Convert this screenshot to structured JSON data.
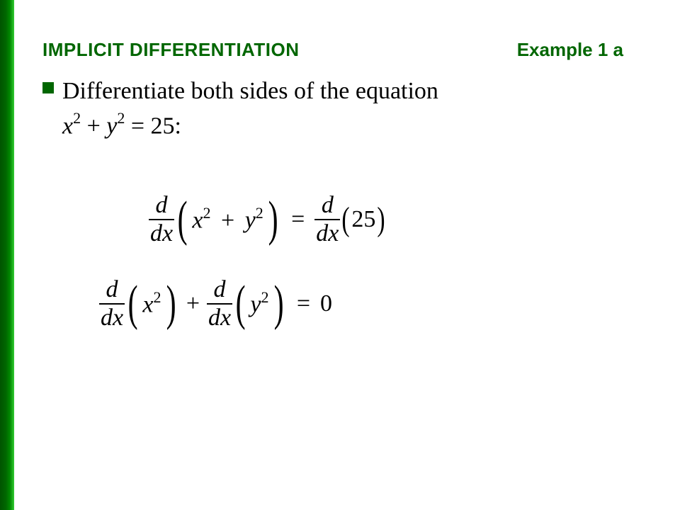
{
  "slide": {
    "title": "IMPLICIT DIFFERENTIATION",
    "example_label": "Example 1 a",
    "bullet_text_main": "Differentiate both sides of the equation",
    "equation_var_x": "x",
    "equation_sup_2a": "2",
    "equation_plus": " + ",
    "equation_var_y": "y",
    "equation_sup_2b": "2",
    "equation_tail": " = 25:",
    "accent_color": "#006600",
    "text_color": "#000000",
    "background_color": "#ffffff"
  },
  "math": {
    "d": "d",
    "dx": "dx",
    "x2": "x",
    "y2": "y",
    "sup2": "2",
    "plus": "+",
    "equals": "=",
    "const25": "25",
    "zero": "0"
  }
}
